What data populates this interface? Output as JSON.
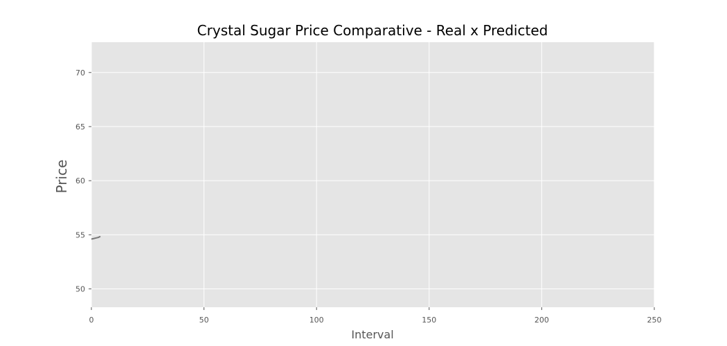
{
  "chart_data": {
    "type": "line",
    "title": "Crystal Sugar Price Comparative - Real x Predicted",
    "xlabel": "Interval",
    "ylabel": "Price",
    "xlim": [
      0,
      250
    ],
    "ylim": [
      48.3,
      72.8
    ],
    "x_ticks": [
      0,
      50,
      100,
      150,
      200,
      250
    ],
    "x_tick_labels": [
      "0",
      "50",
      "100",
      "150",
      "200",
      "250"
    ],
    "y_ticks": [
      50,
      55,
      60,
      65,
      70
    ],
    "y_tick_labels": [
      "50",
      "55",
      "60",
      "65",
      "70"
    ],
    "grid": true,
    "legend": null,
    "series": [
      {
        "x": [
          0,
          1,
          2,
          3,
          4
        ],
        "y": [
          54.6,
          54.65,
          54.7,
          54.75,
          54.85
        ],
        "color": "#777777"
      }
    ]
  },
  "style": {
    "plot_background": "#e5e5e5",
    "grid_color": "#ffffff",
    "tick_color": "#555555",
    "text_color": "#555555",
    "title_color": "#000000"
  }
}
